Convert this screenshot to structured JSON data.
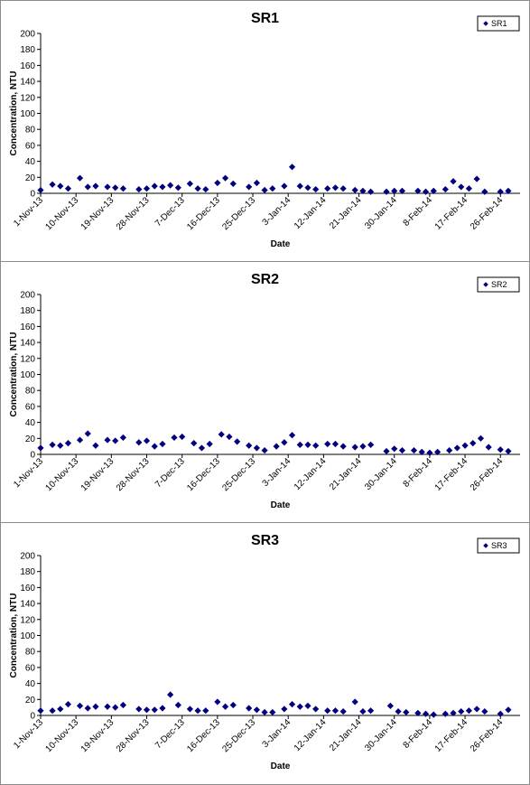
{
  "chart_data": [
    {
      "type": "scatter",
      "title": "SR1",
      "xlabel": "Date",
      "ylabel": "Concentration, NTU",
      "ylim": [
        0,
        200
      ],
      "yticks": [
        0,
        20,
        40,
        60,
        80,
        100,
        120,
        140,
        160,
        180,
        200
      ],
      "xlim": [
        "1-Nov-13",
        "3-Mar-14"
      ],
      "xtick_labels": [
        "1-Nov-13",
        "10-Nov-13",
        "19-Nov-13",
        "28-Nov-13",
        "7-Dec-13",
        "16-Dec-13",
        "25-Dec-13",
        "3-Jan-14",
        "12-Jan-14",
        "21-Jan-14",
        "30-Jan-14",
        "8-Feb-14",
        "17-Feb-14",
        "26-Feb-14"
      ],
      "grid": false,
      "legend_position": "top-right",
      "series_color": "#000080",
      "series": [
        {
          "name": "SR1",
          "points": [
            [
              "1-Nov-13",
              4
            ],
            [
              "4-Nov-13",
              11
            ],
            [
              "6-Nov-13",
              9
            ],
            [
              "8-Nov-13",
              6
            ],
            [
              "11-Nov-13",
              19
            ],
            [
              "13-Nov-13",
              8
            ],
            [
              "15-Nov-13",
              9
            ],
            [
              "18-Nov-13",
              8
            ],
            [
              "20-Nov-13",
              7
            ],
            [
              "22-Nov-13",
              6
            ],
            [
              "26-Nov-13",
              5
            ],
            [
              "28-Nov-13",
              6
            ],
            [
              "30-Nov-13",
              9
            ],
            [
              "2-Dec-13",
              8
            ],
            [
              "4-Dec-13",
              10
            ],
            [
              "6-Dec-13",
              7
            ],
            [
              "9-Dec-13",
              12
            ],
            [
              "11-Dec-13",
              6
            ],
            [
              "13-Dec-13",
              5
            ],
            [
              "16-Dec-13",
              13
            ],
            [
              "18-Dec-13",
              19
            ],
            [
              "20-Dec-13",
              12
            ],
            [
              "24-Dec-13",
              8
            ],
            [
              "26-Dec-13",
              13
            ],
            [
              "28-Dec-13",
              4
            ],
            [
              "30-Dec-13",
              6
            ],
            [
              "2-Jan-14",
              9
            ],
            [
              "4-Jan-14",
              33
            ],
            [
              "6-Jan-14",
              9
            ],
            [
              "8-Jan-14",
              7
            ],
            [
              "10-Jan-14",
              5
            ],
            [
              "13-Jan-14",
              6
            ],
            [
              "15-Jan-14",
              7
            ],
            [
              "17-Jan-14",
              6
            ],
            [
              "20-Jan-14",
              4
            ],
            [
              "22-Jan-14",
              3
            ],
            [
              "24-Jan-14",
              2
            ],
            [
              "28-Jan-14",
              2
            ],
            [
              "30-Jan-14",
              3
            ],
            [
              "1-Feb-14",
              3
            ],
            [
              "5-Feb-14",
              3
            ],
            [
              "7-Feb-14",
              2
            ],
            [
              "9-Feb-14",
              3
            ],
            [
              "12-Feb-14",
              5
            ],
            [
              "14-Feb-14",
              15
            ],
            [
              "16-Feb-14",
              8
            ],
            [
              "18-Feb-14",
              6
            ],
            [
              "20-Feb-14",
              18
            ],
            [
              "22-Feb-14",
              2
            ],
            [
              "26-Feb-14",
              2
            ],
            [
              "28-Feb-14",
              3
            ]
          ]
        }
      ]
    },
    {
      "type": "scatter",
      "title": "SR2",
      "xlabel": "Date",
      "ylabel": "Concentration, NTU",
      "ylim": [
        0,
        200
      ],
      "yticks": [
        0,
        20,
        40,
        60,
        80,
        100,
        120,
        140,
        160,
        180,
        200
      ],
      "xlim": [
        "1-Nov-13",
        "3-Mar-14"
      ],
      "xtick_labels": [
        "1-Nov-13",
        "10-Nov-13",
        "19-Nov-13",
        "28-Nov-13",
        "7-Dec-13",
        "16-Dec-13",
        "25-Dec-13",
        "3-Jan-14",
        "12-Jan-14",
        "21-Jan-14",
        "30-Jan-14",
        "8-Feb-14",
        "17-Feb-14",
        "26-Feb-14"
      ],
      "grid": false,
      "legend_position": "top-right",
      "series_color": "#000080",
      "series": [
        {
          "name": "SR2",
          "points": [
            [
              "1-Nov-13",
              8
            ],
            [
              "4-Nov-13",
              12
            ],
            [
              "6-Nov-13",
              11
            ],
            [
              "8-Nov-13",
              14
            ],
            [
              "11-Nov-13",
              18
            ],
            [
              "13-Nov-13",
              26
            ],
            [
              "15-Nov-13",
              11
            ],
            [
              "18-Nov-13",
              18
            ],
            [
              "20-Nov-13",
              17
            ],
            [
              "22-Nov-13",
              21
            ],
            [
              "26-Nov-13",
              15
            ],
            [
              "28-Nov-13",
              17
            ],
            [
              "30-Nov-13",
              10
            ],
            [
              "2-Dec-13",
              13
            ],
            [
              "5-Dec-13",
              21
            ],
            [
              "7-Dec-13",
              22
            ],
            [
              "10-Dec-13",
              14
            ],
            [
              "12-Dec-13",
              8
            ],
            [
              "14-Dec-13",
              13
            ],
            [
              "17-Dec-13",
              25
            ],
            [
              "19-Dec-13",
              22
            ],
            [
              "21-Dec-13",
              16
            ],
            [
              "24-Dec-13",
              11
            ],
            [
              "26-Dec-13",
              8
            ],
            [
              "28-Dec-13",
              5
            ],
            [
              "31-Dec-13",
              10
            ],
            [
              "2-Jan-14",
              15
            ],
            [
              "4-Jan-14",
              24
            ],
            [
              "6-Jan-14",
              12
            ],
            [
              "8-Jan-14",
              12
            ],
            [
              "10-Jan-14",
              11
            ],
            [
              "13-Jan-14",
              13
            ],
            [
              "15-Jan-14",
              13
            ],
            [
              "17-Jan-14",
              10
            ],
            [
              "20-Jan-14",
              9
            ],
            [
              "22-Jan-14",
              10
            ],
            [
              "24-Jan-14",
              12
            ],
            [
              "28-Jan-14",
              4
            ],
            [
              "30-Jan-14",
              7
            ],
            [
              "1-Feb-14",
              5
            ],
            [
              "4-Feb-14",
              5
            ],
            [
              "6-Feb-14",
              3
            ],
            [
              "8-Feb-14",
              2
            ],
            [
              "10-Feb-14",
              3
            ],
            [
              "13-Feb-14",
              5
            ],
            [
              "15-Feb-14",
              8
            ],
            [
              "17-Feb-14",
              11
            ],
            [
              "19-Feb-14",
              14
            ],
            [
              "21-Feb-14",
              20
            ],
            [
              "23-Feb-14",
              9
            ],
            [
              "26-Feb-14",
              6
            ],
            [
              "28-Feb-14",
              4
            ]
          ]
        }
      ]
    },
    {
      "type": "scatter",
      "title": "SR3",
      "xlabel": "Date",
      "ylabel": "Concentration, NTU",
      "ylim": [
        0,
        200
      ],
      "yticks": [
        0,
        20,
        40,
        60,
        80,
        100,
        120,
        140,
        160,
        180,
        200
      ],
      "xlim": [
        "1-Nov-13",
        "3-Mar-14"
      ],
      "xtick_labels": [
        "1-Nov-13",
        "10-Nov-13",
        "19-Nov-13",
        "28-Nov-13",
        "7-Dec-13",
        "16-Dec-13",
        "25-Dec-13",
        "3-Jan-14",
        "12-Jan-14",
        "21-Jan-14",
        "30-Jan-14",
        "8-Feb-14",
        "17-Feb-14",
        "26-Feb-14"
      ],
      "grid": false,
      "legend_position": "top-right",
      "series_color": "#000080",
      "series": [
        {
          "name": "SR3",
          "points": [
            [
              "1-Nov-13",
              6
            ],
            [
              "4-Nov-13",
              6
            ],
            [
              "6-Nov-13",
              8
            ],
            [
              "8-Nov-13",
              14
            ],
            [
              "11-Nov-13",
              12
            ],
            [
              "13-Nov-13",
              9
            ],
            [
              "15-Nov-13",
              11
            ],
            [
              "18-Nov-13",
              11
            ],
            [
              "20-Nov-13",
              10
            ],
            [
              "22-Nov-13",
              13
            ],
            [
              "26-Nov-13",
              8
            ],
            [
              "28-Nov-13",
              7
            ],
            [
              "30-Nov-13",
              7
            ],
            [
              "2-Dec-13",
              9
            ],
            [
              "4-Dec-13",
              26
            ],
            [
              "6-Dec-13",
              13
            ],
            [
              "9-Dec-13",
              8
            ],
            [
              "11-Dec-13",
              6
            ],
            [
              "13-Dec-13",
              6
            ],
            [
              "16-Dec-13",
              17
            ],
            [
              "18-Dec-13",
              11
            ],
            [
              "20-Dec-13",
              13
            ],
            [
              "24-Dec-13",
              9
            ],
            [
              "26-Dec-13",
              7
            ],
            [
              "28-Dec-13",
              4
            ],
            [
              "30-Dec-13",
              4
            ],
            [
              "2-Jan-14",
              8
            ],
            [
              "4-Jan-14",
              14
            ],
            [
              "6-Jan-14",
              11
            ],
            [
              "8-Jan-14",
              12
            ],
            [
              "10-Jan-14",
              8
            ],
            [
              "13-Jan-14",
              6
            ],
            [
              "15-Jan-14",
              6
            ],
            [
              "17-Jan-14",
              5
            ],
            [
              "20-Jan-14",
              17
            ],
            [
              "22-Jan-14",
              5
            ],
            [
              "24-Jan-14",
              6
            ],
            [
              "29-Jan-14",
              12
            ],
            [
              "31-Jan-14",
              5
            ],
            [
              "2-Feb-14",
              4
            ],
            [
              "5-Feb-14",
              3
            ],
            [
              "7-Feb-14",
              2
            ],
            [
              "9-Feb-14",
              1
            ],
            [
              "12-Feb-14",
              2
            ],
            [
              "14-Feb-14",
              3
            ],
            [
              "16-Feb-14",
              5
            ],
            [
              "18-Feb-14",
              6
            ],
            [
              "20-Feb-14",
              8
            ],
            [
              "22-Feb-14",
              5
            ],
            [
              "26-Feb-14",
              2
            ],
            [
              "28-Feb-14",
              7
            ]
          ]
        }
      ]
    }
  ]
}
